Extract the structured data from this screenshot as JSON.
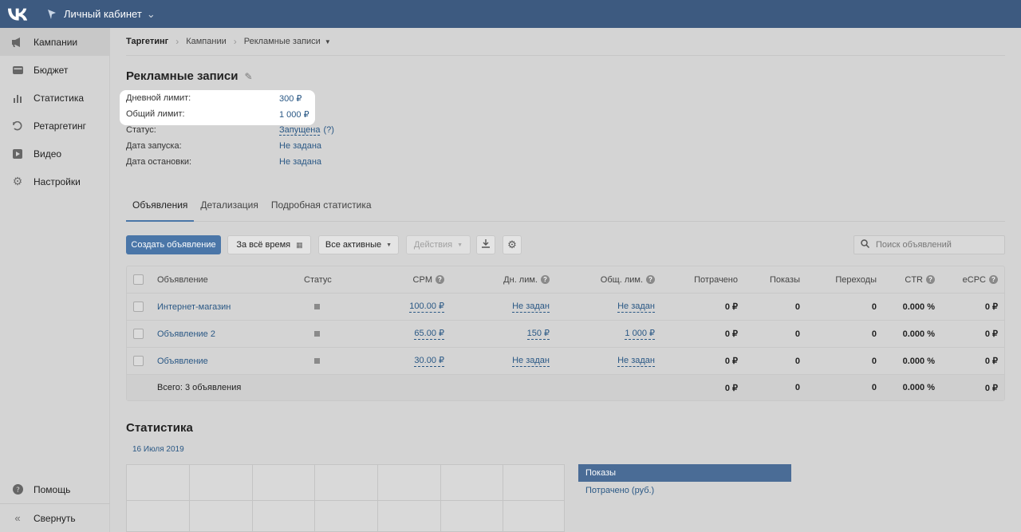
{
  "topbar": {
    "cabinet_label": "Личный кабинет"
  },
  "sidebar": {
    "items": [
      {
        "label": "Кампании",
        "icon": "megaphone-icon"
      },
      {
        "label": "Бюджет",
        "icon": "wallet-icon"
      },
      {
        "label": "Статистика",
        "icon": "bar-chart-icon"
      },
      {
        "label": "Ретаргетинг",
        "icon": "retarget-icon"
      },
      {
        "label": "Видео",
        "icon": "video-icon"
      },
      {
        "label": "Настройки",
        "icon": "gear-icon"
      }
    ],
    "help_label": "Помощь",
    "collapse_label": "Свернуть"
  },
  "breadcrumb": {
    "root": "Таргетинг",
    "campaigns": "Кампании",
    "current": "Рекламные записи"
  },
  "page": {
    "title": "Рекламные записи"
  },
  "properties": {
    "daily_limit_label": "Дневной лимит:",
    "daily_limit_value": "300 ₽",
    "total_limit_label": "Общий лимит:",
    "total_limit_value": "1 000 ₽",
    "status_label": "Статус:",
    "status_value": "Запущена",
    "status_help": "(?)",
    "start_label": "Дата запуска:",
    "start_value": "Не задана",
    "stop_label": "Дата остановки:",
    "stop_value": "Не задана"
  },
  "tabs": [
    "Объявления",
    "Детализация",
    "Подробная статистика"
  ],
  "toolbar": {
    "create_label": "Создать объявление",
    "period_label": "За всё время",
    "filter_label": "Все активные",
    "actions_label": "Действия",
    "search_placeholder": "Поиск объявлений"
  },
  "table": {
    "headers": {
      "name": "Объявление",
      "status": "Статус",
      "cpm": "CPM",
      "day": "Дн. лим.",
      "total": "Общ. лим.",
      "spent": "Потрачено",
      "impressions": "Показы",
      "clicks": "Переходы",
      "ctr": "CTR",
      "ecpc": "eCPC"
    },
    "rows": [
      {
        "name": "Интернет-магазин",
        "cpm": "100.00 ₽",
        "day": "Не задан",
        "total": "Не задан",
        "spent": "0 ₽",
        "impressions": "0",
        "clicks": "0",
        "ctr": "0.000 %",
        "ecpc": "0 ₽"
      },
      {
        "name": "Объявление 2",
        "cpm": "65.00 ₽",
        "day": "150 ₽",
        "total": "1 000 ₽",
        "spent": "0 ₽",
        "impressions": "0",
        "clicks": "0",
        "ctr": "0.000 %",
        "ecpc": "0 ₽"
      },
      {
        "name": "Объявление",
        "cpm": "30.00 ₽",
        "day": "Не задан",
        "total": "Не задан",
        "spent": "0 ₽",
        "impressions": "0",
        "clicks": "0",
        "ctr": "0.000 %",
        "ecpc": "0 ₽"
      }
    ],
    "total": {
      "label": "Всего: 3 объявления",
      "spent": "0 ₽",
      "impressions": "0",
      "clicks": "0",
      "ctr": "0.000 %",
      "ecpc": "0 ₽"
    }
  },
  "stats": {
    "title": "Статистика",
    "date": "16 Июля 2019",
    "metrics": [
      "Показы",
      "Потрачено (руб.)"
    ]
  },
  "colors": {
    "topbar": "#3d5a80",
    "accent": "#4a76a8",
    "link": "#2a5885"
  }
}
